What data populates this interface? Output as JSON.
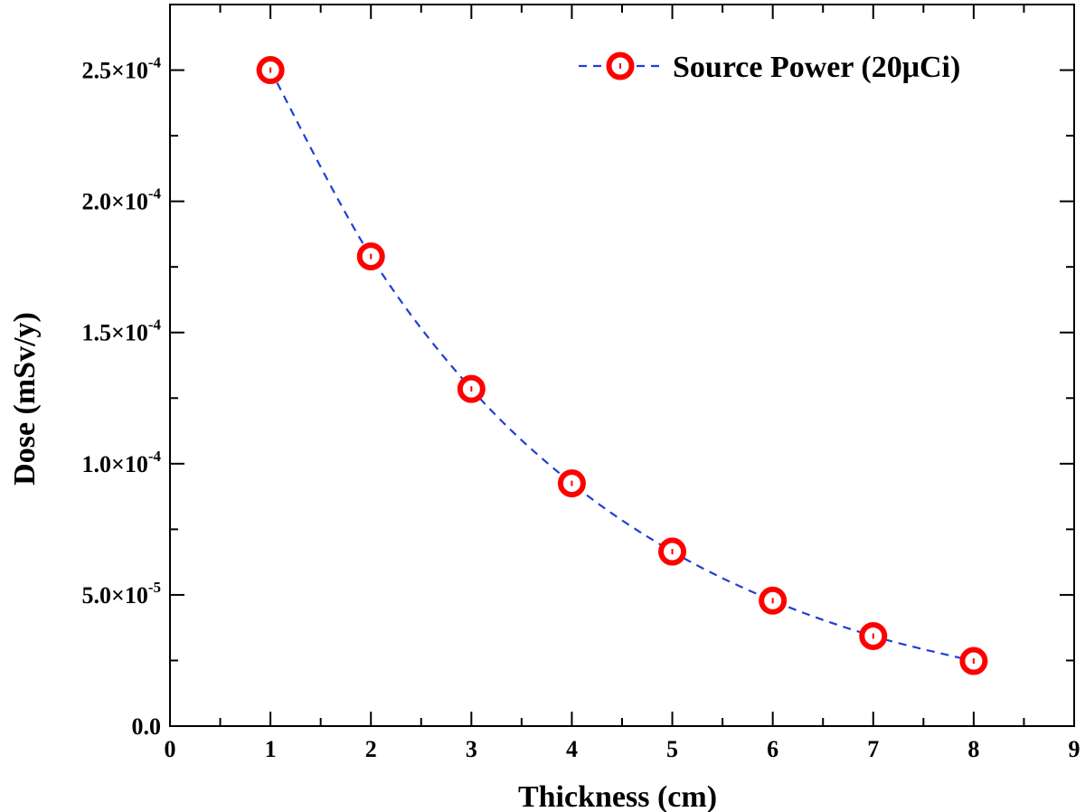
{
  "chart_data": {
    "type": "line",
    "title": "",
    "xlabel": "Thickness (cm)",
    "ylabel": "Dose (mSv/y)",
    "xlim": [
      0,
      9
    ],
    "ylim": [
      0,
      0.000275
    ],
    "xticks": [
      0,
      1,
      2,
      3,
      4,
      5,
      6,
      7,
      8,
      9
    ],
    "xtick_labels": [
      "0",
      "1",
      "2",
      "3",
      "4",
      "5",
      "6",
      "7",
      "8",
      "9"
    ],
    "yticks": [
      0,
      5e-05,
      0.0001,
      0.00015,
      0.0002,
      0.00025
    ],
    "ytick_labels": [
      {
        "mantissa": "0.0",
        "exponent": ""
      },
      {
        "mantissa": "5.0×10",
        "exponent": "-5"
      },
      {
        "mantissa": "1.0×10",
        "exponent": "-4"
      },
      {
        "mantissa": "1.5×10",
        "exponent": "-4"
      },
      {
        "mantissa": "2.0×10",
        "exponent": "-4"
      },
      {
        "mantissa": "2.5×10",
        "exponent": "-4"
      }
    ],
    "grid": false,
    "legend_position": "top-right",
    "series": [
      {
        "name": "Source Power (20μCi)",
        "line_color": "#1f3fd6",
        "marker_color": "#ff0000",
        "marker": "open-circle",
        "line_style": "dashed",
        "x": [
          1,
          2,
          3,
          4,
          5,
          6,
          7,
          8
        ],
        "y": [
          0.00025,
          0.000179,
          0.0001285,
          9.25e-05,
          6.65e-05,
          4.78e-05,
          3.43e-05,
          2.48e-05
        ]
      }
    ]
  }
}
